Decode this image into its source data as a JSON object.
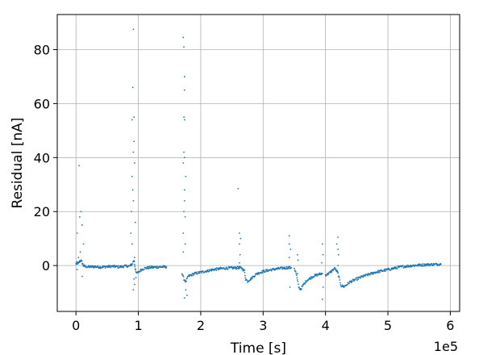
{
  "chart_data": {
    "type": "scatter",
    "title": "",
    "xlabel": "Time [s]",
    "ylabel": "Residual [nA]",
    "x_offset_label": "1e5",
    "xlim": [
      -0.3,
      6.15
    ],
    "ylim": [
      -17,
      93
    ],
    "x_ticks": [
      0,
      1,
      2,
      3,
      4,
      5,
      6
    ],
    "y_ticks": [
      0,
      20,
      40,
      60,
      80
    ],
    "grid": true,
    "marker_color": "#1f77b4",
    "series": [
      {
        "segments": [
          {
            "points": [
              [
                0,
                0.5
              ],
              [
                0.02,
                1.0
              ],
              [
                0.04,
                0.8
              ],
              [
                0.06,
                1.5
              ],
              [
                0.08,
                2.0
              ],
              [
                0.1,
                1.0
              ],
              [
                0.12,
                0.0
              ],
              [
                0.14,
                -0.3
              ],
              [
                0.2,
                -0.5
              ],
              [
                0.3,
                -0.4
              ],
              [
                0.4,
                -0.6
              ],
              [
                0.5,
                -0.4
              ],
              [
                0.6,
                -0.3
              ],
              [
                0.7,
                -0.5
              ],
              [
                0.8,
                -0.2
              ],
              [
                0.85,
                -0.2
              ]
            ]
          },
          {
            "points": [
              [
                0.85,
                -0.3
              ],
              [
                0.9,
                0.5
              ],
              [
                0.93,
                2.0
              ],
              [
                0.95,
                -1.0
              ],
              [
                0.97,
                -3.0
              ],
              [
                1.0,
                -2.5
              ],
              [
                1.05,
                -1.5
              ],
              [
                1.1,
                -1.0
              ],
              [
                1.2,
                -0.7
              ],
              [
                1.3,
                -0.6
              ],
              [
                1.4,
                -0.5
              ],
              [
                1.45,
                -0.5
              ]
            ]
          },
          {
            "points": [
              [
                1.7,
                -3.0
              ],
              [
                1.73,
                -5.0
              ],
              [
                1.76,
                -6.0
              ],
              [
                1.8,
                -4.0
              ],
              [
                1.85,
                -3.5
              ],
              [
                1.9,
                -3.0
              ],
              [
                2.0,
                -2.5
              ],
              [
                2.1,
                -2.0
              ],
              [
                2.2,
                -1.5
              ],
              [
                2.3,
                -1.2
              ],
              [
                2.4,
                -1.0
              ],
              [
                2.5,
                -0.9
              ],
              [
                2.6,
                -0.8
              ],
              [
                2.62,
                -0.8
              ]
            ]
          },
          {
            "points": [
              [
                2.62,
                -0.8
              ],
              [
                2.66,
                -1.0
              ],
              [
                2.7,
                -2.0
              ],
              [
                2.72,
                -5.0
              ],
              [
                2.75,
                -5.8
              ],
              [
                2.8,
                -5.0
              ],
              [
                2.85,
                -4.0
              ],
              [
                2.9,
                -3.0
              ],
              [
                3.0,
                -2.2
              ],
              [
                3.1,
                -1.7
              ],
              [
                3.2,
                -1.3
              ],
              [
                3.3,
                -1.0
              ],
              [
                3.4,
                -0.8
              ],
              [
                3.45,
                -0.8
              ]
            ]
          },
          {
            "points": [
              [
                3.5,
                -1.0
              ],
              [
                3.53,
                -3.0
              ],
              [
                3.57,
                -8.0
              ],
              [
                3.6,
                -8.8
              ],
              [
                3.65,
                -7.0
              ],
              [
                3.7,
                -5.5
              ],
              [
                3.8,
                -4.0
              ],
              [
                3.9,
                -3.2
              ],
              [
                3.95,
                -3.0
              ]
            ]
          },
          {
            "points": [
              [
                4.0,
                -3.5
              ],
              [
                4.05,
                -3.0
              ],
              [
                4.1,
                -2.0
              ],
              [
                4.15,
                -1.0
              ],
              [
                4.2,
                -3.0
              ],
              [
                4.25,
                -7.5
              ],
              [
                4.3,
                -7.8
              ],
              [
                4.4,
                -6.0
              ],
              [
                4.6,
                -4.0
              ],
              [
                4.8,
                -2.5
              ],
              [
                5.0,
                -1.5
              ],
              [
                5.2,
                -0.5
              ],
              [
                5.4,
                0.0
              ],
              [
                5.6,
                0.3
              ],
              [
                5.85,
                0.5
              ]
            ]
          }
        ],
        "outliers": [
          [
            0.02,
            -1.5
          ],
          [
            0.04,
            3.0
          ],
          [
            0.05,
            37.0
          ],
          [
            0.06,
            18.0
          ],
          [
            0.08,
            20.0
          ],
          [
            0.1,
            -4.0
          ],
          [
            0.12,
            8.0
          ],
          [
            0.02,
            12.0
          ],
          [
            0.07,
            5.0
          ],
          [
            0.1,
            15.0
          ],
          [
            0.88,
            0.0
          ],
          [
            0.9,
            8.0
          ],
          [
            0.9,
            54.0
          ],
          [
            0.91,
            28.0
          ],
          [
            0.91,
            66.0
          ],
          [
            0.92,
            87.5
          ],
          [
            0.92,
            24.0
          ],
          [
            0.92,
            -9.0
          ],
          [
            0.93,
            55.0
          ],
          [
            0.93,
            46.0
          ],
          [
            0.94,
            -7.0
          ],
          [
            0.94,
            38.0
          ],
          [
            0.95,
            16.0
          ],
          [
            0.88,
            12.0
          ],
          [
            0.89,
            20.0
          ],
          [
            0.93,
            -5.0
          ],
          [
            0.96,
            -4.5
          ],
          [
            0.94,
            3.0
          ],
          [
            0.9,
            33.0
          ],
          [
            0.92,
            42.0
          ],
          [
            1.72,
            84.5
          ],
          [
            1.73,
            81.0
          ],
          [
            1.74,
            70.0
          ],
          [
            1.74,
            65.0
          ],
          [
            1.73,
            55.0
          ],
          [
            1.74,
            54.0
          ],
          [
            1.73,
            42.0
          ],
          [
            1.72,
            38.0
          ],
          [
            1.74,
            40.0
          ],
          [
            1.76,
            33.0
          ],
          [
            1.74,
            28.0
          ],
          [
            1.75,
            18.0
          ],
          [
            1.72,
            12.0
          ],
          [
            1.74,
            -12.0
          ],
          [
            1.72,
            5.0
          ],
          [
            1.76,
            -9.0
          ],
          [
            1.78,
            -11.0
          ],
          [
            1.75,
            8.0
          ],
          [
            1.73,
            20.0
          ],
          [
            1.74,
            24.0
          ],
          [
            2.6,
            28.5
          ],
          [
            2.62,
            12.0
          ],
          [
            2.62,
            8.0
          ],
          [
            2.63,
            4.0
          ],
          [
            2.62,
            1.0
          ],
          [
            2.64,
            10.0
          ],
          [
            3.42,
            11.0
          ],
          [
            3.42,
            8.0
          ],
          [
            3.43,
            -8.0
          ],
          [
            3.44,
            6.0
          ],
          [
            3.42,
            3.0
          ],
          [
            3.55,
            4.0
          ],
          [
            3.55,
            -3.0
          ],
          [
            3.56,
            2.0
          ],
          [
            3.95,
            8.0
          ],
          [
            3.95,
            -12.5
          ],
          [
            3.96,
            -8.0
          ],
          [
            3.96,
            4.0
          ],
          [
            3.94,
            1.0
          ],
          [
            4.2,
            10.5
          ],
          [
            4.2,
            6.0
          ],
          [
            4.21,
            4.0
          ],
          [
            4.19,
            -2.0
          ],
          [
            4.2,
            0.0
          ],
          [
            4.18,
            8.0
          ]
        ]
      }
    ]
  }
}
